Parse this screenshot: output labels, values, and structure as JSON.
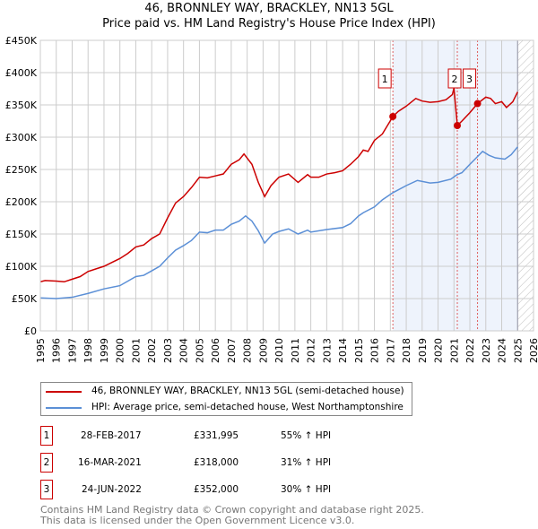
{
  "title": "46, BRONNLEY WAY, BRACKLEY, NN13 5GL",
  "subtitle": "Price paid vs. HM Land Registry's House Price Index (HPI)",
  "chart_data": {
    "type": "line",
    "title": "46, BRONNLEY WAY, BRACKLEY, NN13 5GL",
    "subtitle": "Price paid vs. HM Land Registry's House Price Index (HPI)",
    "xlim": [
      1995,
      2026
    ],
    "ylim": [
      0,
      450000
    ],
    "x_ticks": [
      "1995",
      "1996",
      "1997",
      "1998",
      "1999",
      "2000",
      "2001",
      "2002",
      "2003",
      "2004",
      "2005",
      "2006",
      "2007",
      "2008",
      "2009",
      "2010",
      "2011",
      "2012",
      "2013",
      "2014",
      "2015",
      "2016",
      "2017",
      "2018",
      "2019",
      "2020",
      "2021",
      "2022",
      "2023",
      "2024",
      "2025",
      "2026"
    ],
    "y_ticks": [
      {
        "v": 0,
        "l": "£0"
      },
      {
        "v": 50000,
        "l": "£50K"
      },
      {
        "v": 100000,
        "l": "£100K"
      },
      {
        "v": 150000,
        "l": "£150K"
      },
      {
        "v": 200000,
        "l": "£200K"
      },
      {
        "v": 250000,
        "l": "£250K"
      },
      {
        "v": 300000,
        "l": "£300K"
      },
      {
        "v": 350000,
        "l": "£350K"
      },
      {
        "v": 400000,
        "l": "£400K"
      },
      {
        "v": 450000,
        "l": "£450K"
      }
    ],
    "grid": true,
    "shaded_from": 2017.16,
    "hatched_from": 2025.0,
    "series": [
      {
        "name": "46, BRONNLEY WAY, BRACKLEY, NN13 5GL (semi-detached house)",
        "color": "#cc0000",
        "x": [
          1995,
          1995.3,
          1996,
          1996.5,
          1997,
          1997.5,
          1998,
          1998.5,
          1999,
          2000,
          2000.5,
          2001,
          2001.5,
          2002,
          2002.5,
          2003,
          2003.5,
          2004,
          2004.5,
          2005,
          2005.5,
          2006,
          2006.5,
          2007,
          2007.5,
          2007.8,
          2008.3,
          2008.7,
          2009.1,
          2009.5,
          2010,
          2010.6,
          2011.2,
          2011.8,
          2012,
          2012.5,
          2013,
          2013.5,
          2014,
          2014.5,
          2015,
          2015.3,
          2015.6,
          2016,
          2016.5,
          2017.16,
          2017.5,
          2018,
          2018.6,
          2019,
          2019.5,
          2020,
          2020.5,
          2020.9,
          2021.0,
          2021.21,
          2021.5,
          2022,
          2022.48,
          2023,
          2023.3,
          2023.6,
          2024,
          2024.3,
          2024.7,
          2025
        ],
        "y": [
          76000,
          78000,
          77000,
          76000,
          80000,
          84000,
          92000,
          96000,
          100000,
          112000,
          120000,
          130000,
          133000,
          143000,
          150000,
          175000,
          198000,
          208000,
          222000,
          238000,
          237000,
          240000,
          243000,
          258000,
          265000,
          274000,
          258000,
          230000,
          208000,
          225000,
          238000,
          243000,
          230000,
          242000,
          238000,
          238000,
          243000,
          245000,
          248000,
          258000,
          270000,
          280000,
          278000,
          295000,
          305000,
          331995,
          340000,
          348000,
          360000,
          356000,
          354000,
          355000,
          358000,
          366000,
          376000,
          318000,
          325000,
          338000,
          352000,
          362000,
          360000,
          352000,
          355000,
          346000,
          355000,
          370000
        ]
      },
      {
        "name": "HPI: Average price, semi-detached house, West Northamptonshire",
        "color": "#5b8fd6",
        "x": [
          1995,
          1996,
          1997,
          1998,
          1999,
          2000,
          2001,
          2001.5,
          2002,
          2002.5,
          2003,
          2003.5,
          2004,
          2004.5,
          2005,
          2005.5,
          2006,
          2006.5,
          2007,
          2007.5,
          2007.9,
          2008.3,
          2008.7,
          2009.1,
          2009.6,
          2010,
          2010.6,
          2011.2,
          2011.8,
          2012,
          2013,
          2014,
          2014.5,
          2015,
          2015.3,
          2016,
          2016.5,
          2017.16,
          2018,
          2018.7,
          2019.5,
          2020,
          2020.8,
          2021.2,
          2021.5,
          2022,
          2022.48,
          2022.8,
          2023.2,
          2023.6,
          2024.2,
          2024.6,
          2025
        ],
        "y": [
          51000,
          50000,
          52000,
          58000,
          65000,
          70000,
          84000,
          86000,
          93000,
          100000,
          113000,
          125000,
          132000,
          140000,
          153000,
          152000,
          156000,
          156000,
          165000,
          170000,
          178000,
          170000,
          155000,
          136000,
          150000,
          154000,
          158000,
          150000,
          156000,
          153000,
          157000,
          160000,
          166000,
          178000,
          183000,
          192000,
          203000,
          214000,
          225000,
          233000,
          229000,
          230000,
          235000,
          242000,
          245000,
          258000,
          270000,
          278000,
          272000,
          268000,
          266000,
          273000,
          285000
        ]
      }
    ],
    "sales": [
      {
        "n": "1",
        "x": 2017.16,
        "y": 331995
      },
      {
        "n": "2",
        "x": 2021.21,
        "y": 318000
      },
      {
        "n": "3",
        "x": 2022.48,
        "y": 352000
      }
    ]
  },
  "legend": [
    "46, BRONNLEY WAY, BRACKLEY, NN13 5GL (semi-detached house)",
    "HPI: Average price, semi-detached house, West Northamptonshire"
  ],
  "transactions": [
    {
      "n": "1",
      "date": "28-FEB-2017",
      "price": "£331,995",
      "hpi": "55% ↑ HPI"
    },
    {
      "n": "2",
      "date": "16-MAR-2021",
      "price": "£318,000",
      "hpi": "31% ↑ HPI"
    },
    {
      "n": "3",
      "date": "24-JUN-2022",
      "price": "£352,000",
      "hpi": "30% ↑ HPI"
    }
  ],
  "footer": [
    "Contains HM Land Registry data © Crown copyright and database right 2025.",
    "This data is licensed under the Open Government Licence v3.0."
  ]
}
